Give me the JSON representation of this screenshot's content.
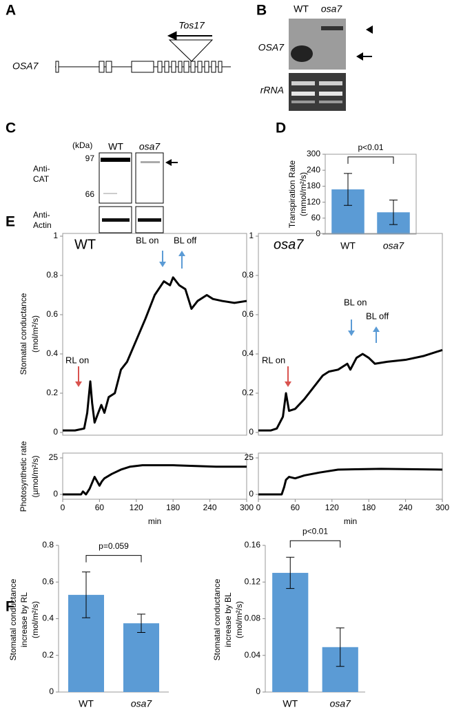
{
  "panels": [
    "A",
    "B",
    "C",
    "D",
    "E",
    "F"
  ],
  "gene_diagram": {
    "insertion": "Tos17",
    "gene": "OSA7"
  },
  "northern": {
    "lanes": [
      "WT",
      "osa7"
    ],
    "rows": [
      "OSA7",
      "rRNA"
    ]
  },
  "western": {
    "unit": "(kDa)",
    "lanes": [
      "WT",
      "osa7"
    ],
    "markers": [
      97,
      66
    ],
    "rows": [
      [
        "Anti-",
        "CAT"
      ],
      [
        "Anti-",
        "Actin"
      ]
    ]
  },
  "chart_data": [
    {
      "type": "bar",
      "ylabel": [
        "Transpiration Rate",
        "(mmol/m²/s)"
      ],
      "categories": [
        "WT",
        "osa7"
      ],
      "values": [
        168,
        82
      ],
      "errors": [
        60,
        46
      ],
      "color": "#5b9bd5",
      "ylim": [
        0,
        300
      ],
      "yticks": [
        0,
        60,
        120,
        180,
        240,
        300
      ],
      "annotation": "p<0.01"
    },
    {
      "type": "line",
      "ylabel": [
        "Stomatal conductance",
        "(mol/m²/s)"
      ],
      "color": "#000000",
      "xlim": [
        0,
        300
      ],
      "ylim": [
        0,
        1
      ],
      "yticks": [
        0,
        0.2,
        0.4,
        0.6,
        0.8,
        1
      ],
      "x": [
        0,
        20,
        35,
        40,
        45,
        48,
        52,
        58,
        63,
        68,
        75,
        85,
        95,
        105,
        120,
        135,
        150,
        165,
        175,
        180,
        190,
        200,
        210,
        220,
        235,
        245,
        260,
        280,
        300
      ],
      "values": [
        0.01,
        0.01,
        0.02,
        0.1,
        0.26,
        0.15,
        0.05,
        0.1,
        0.14,
        0.1,
        0.18,
        0.2,
        0.32,
        0.36,
        0.47,
        0.58,
        0.7,
        0.77,
        0.75,
        0.79,
        0.75,
        0.73,
        0.63,
        0.67,
        0.7,
        0.68,
        0.67,
        0.66,
        0.67
      ],
      "annotations": [
        "WT",
        "RL on",
        "BL on",
        "BL off"
      ]
    },
    {
      "type": "line",
      "color": "#000000",
      "xlim": [
        0,
        300
      ],
      "ylim": [
        0,
        1
      ],
      "yticks": [
        0,
        0.2,
        0.4,
        0.6,
        0.8,
        1
      ],
      "x": [
        0,
        20,
        30,
        35,
        40,
        45,
        50,
        60,
        75,
        90,
        105,
        115,
        130,
        145,
        150,
        160,
        170,
        180,
        190,
        210,
        240,
        270,
        300
      ],
      "values": [
        0.01,
        0.01,
        0.02,
        0.05,
        0.08,
        0.2,
        0.11,
        0.12,
        0.17,
        0.23,
        0.29,
        0.31,
        0.32,
        0.35,
        0.32,
        0.38,
        0.4,
        0.38,
        0.35,
        0.36,
        0.37,
        0.39,
        0.42
      ],
      "annotations": [
        "osa7",
        "RL on",
        "BL on",
        "BL off"
      ]
    },
    {
      "type": "line",
      "ylabel": [
        "Photosynthetic rate",
        "(µmol/m²/s)"
      ],
      "color": "#000000",
      "xlim": [
        0,
        300
      ],
      "ylim": [
        0,
        25
      ],
      "yticks": [
        0,
        25
      ],
      "xticks": [
        0,
        60,
        120,
        180,
        240,
        300
      ],
      "xlabel": "min",
      "x": [
        0,
        30,
        33,
        38,
        44,
        48,
        52,
        56,
        60,
        64,
        68,
        80,
        95,
        110,
        130,
        180,
        250,
        300
      ],
      "values": [
        0,
        0,
        2,
        0,
        4,
        8,
        12,
        9,
        6,
        9,
        11,
        14,
        17,
        19,
        20,
        20,
        19,
        19
      ]
    },
    {
      "type": "line",
      "color": "#000000",
      "xlim": [
        0,
        300
      ],
      "ylim": [
        0,
        25
      ],
      "yticks": [
        0,
        25
      ],
      "xticks": [
        0,
        60,
        120,
        180,
        240,
        300
      ],
      "xlabel": "min",
      "x": [
        0,
        38,
        42,
        45,
        50,
        60,
        75,
        100,
        130,
        200,
        300
      ],
      "values": [
        0,
        0,
        5,
        10,
        12,
        11,
        13,
        15,
        17,
        17.5,
        17
      ]
    },
    {
      "type": "bar",
      "ylabel": [
        "Stomatal conductance",
        "increase by RL",
        "(mol/m²/s)"
      ],
      "categories": [
        "WT",
        "osa7"
      ],
      "values": [
        0.53,
        0.375
      ],
      "errors": [
        0.125,
        0.05
      ],
      "color": "#5b9bd5",
      "ylim": [
        0,
        0.8
      ],
      "yticks": [
        0,
        0.2,
        0.4,
        0.6,
        0.8
      ],
      "annotation": "p=0.059"
    },
    {
      "type": "bar",
      "ylabel": [
        "Stomatal conductance",
        "increase by BL",
        "(mol/m²/s)"
      ],
      "categories": [
        "WT",
        "osa7"
      ],
      "values": [
        0.13,
        0.049
      ],
      "errors": [
        0.017,
        0.021
      ],
      "color": "#5b9bd5",
      "ylim": [
        0,
        0.16
      ],
      "yticks": [
        0,
        0.04,
        0.08,
        0.12,
        0.16
      ],
      "annotation": "p<0.01"
    }
  ]
}
